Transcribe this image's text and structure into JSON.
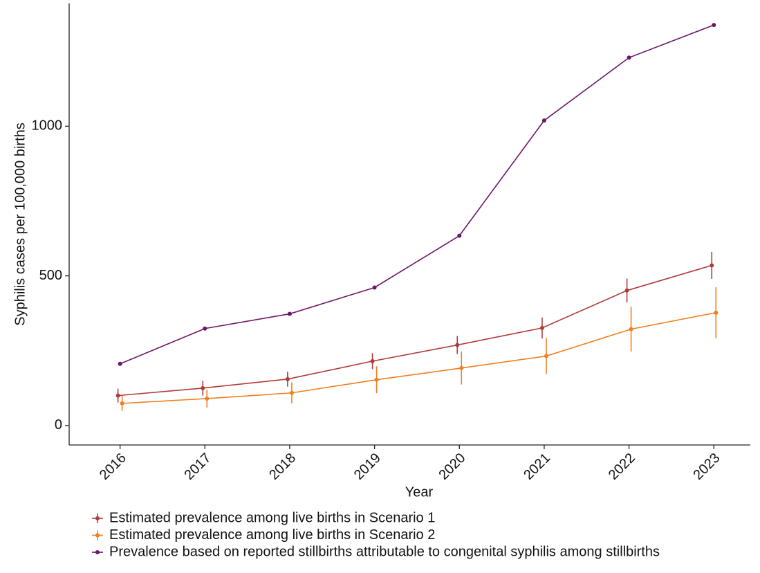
{
  "chart_data": {
    "type": "line",
    "x_label": "Year",
    "y_label": "Syphilis cases per 100,000 births",
    "x": [
      2016,
      2017,
      2018,
      2019,
      2020,
      2021,
      2022,
      2023
    ],
    "xlim": [
      2015.4,
      2023.43
    ],
    "xticks": [
      2016,
      2017,
      2018,
      2019,
      2020,
      2021,
      2022,
      2023
    ],
    "ylim": [
      -65,
      1410
    ],
    "yticks": [
      0,
      500,
      1000
    ],
    "series": [
      {
        "name": "Estimated prevalence among live births in Scenario 1",
        "color": "#b03a3a",
        "values": [
          100,
          125,
          155,
          215,
          269,
          326,
          451,
          535
        ],
        "errors": [
          23,
          25,
          25,
          27,
          30,
          35,
          40,
          45
        ]
      },
      {
        "name": "Estimated prevalence among live births in Scenario 2",
        "color": "#f07f1e",
        "values": [
          74,
          90,
          109,
          153,
          192,
          232,
          322,
          377
        ],
        "errors": [
          25,
          30,
          35,
          45,
          55,
          60,
          75,
          85
        ]
      },
      {
        "name": "Prevalence based on reported stillbirths attributable to congenital syphilis among stillbirths",
        "color": "#6b1566",
        "values": [
          206,
          324,
          373,
          461,
          634,
          1019,
          1229,
          1338
        ]
      }
    ]
  }
}
